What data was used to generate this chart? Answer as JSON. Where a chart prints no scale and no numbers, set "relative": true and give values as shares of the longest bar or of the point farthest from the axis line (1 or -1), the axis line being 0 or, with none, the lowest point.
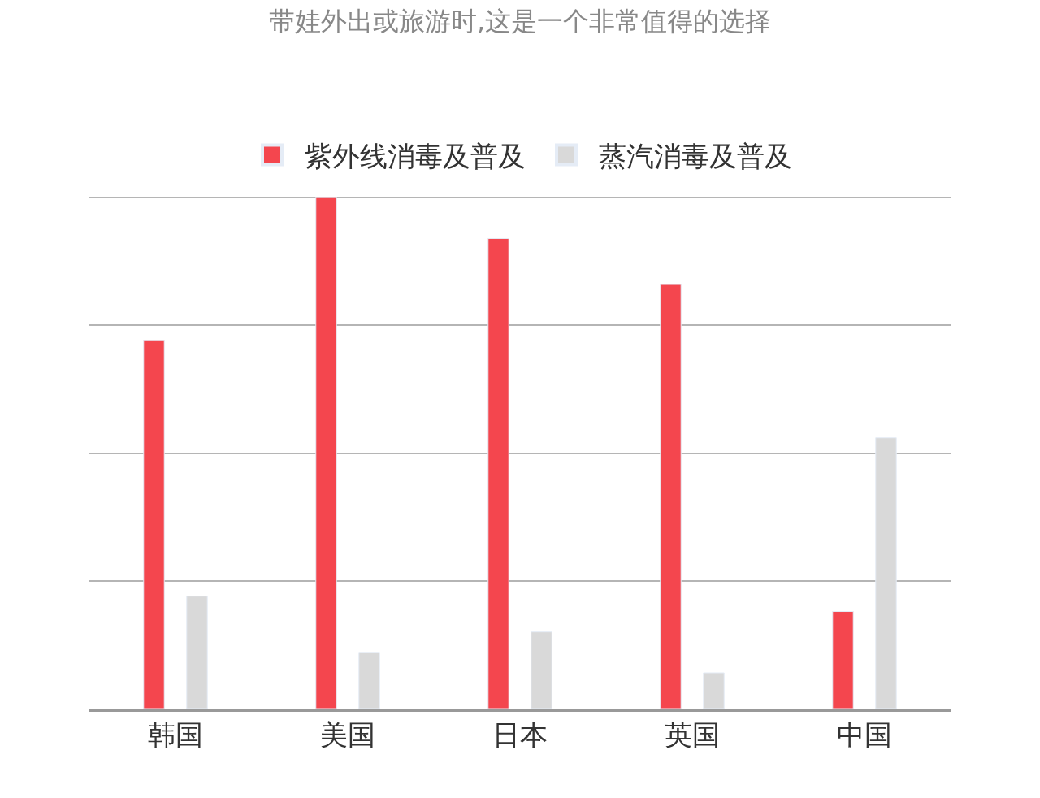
{
  "chart_data": {
    "type": "bar",
    "title": "带娃外出或旅游时,这是一个非常值得的选择",
    "relative": true,
    "grid": "y",
    "legend": "top",
    "categories": [
      "韩国",
      "美国",
      "日本",
      "英国",
      "中国"
    ],
    "series": [
      {
        "name": "紫外线消毒及普及",
        "color": "#f4464e",
        "values": [
          0.72,
          1,
          0.92,
          0.83,
          0.19
        ]
      },
      {
        "name": "蒸汽消毒及普及",
        "color": "#d9d9d9",
        "values": [
          0.22,
          0.11,
          0.15,
          0.07,
          0.53
        ]
      }
    ]
  }
}
